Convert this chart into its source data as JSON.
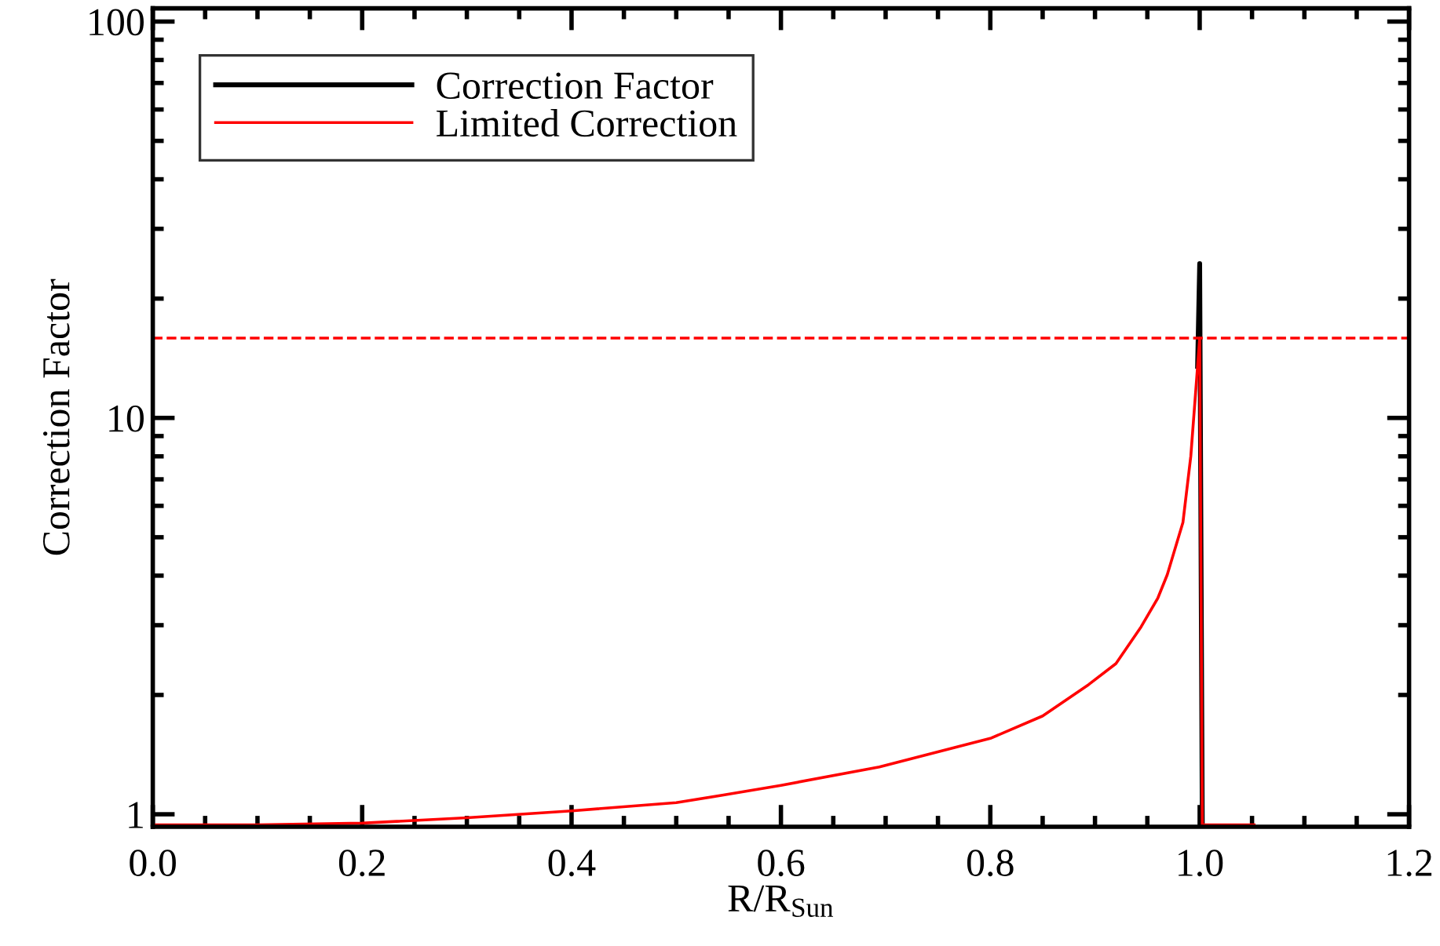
{
  "chart_data": {
    "type": "line",
    "xlabel": "R/R$_{Sun}$",
    "ylabel": "Correction Factor",
    "log": "y",
    "legend": "top left",
    "grid": false,
    "line_style": "solid",
    "marker": "none",
    "xlim": [
      0,
      1.2
    ],
    "ylim": [
      0.93,
      108
    ],
    "xticks": [
      {
        "value": 0,
        "label": "0.0"
      },
      {
        "value": 0.05,
        "label": null
      },
      {
        "value": 0.1,
        "label": null
      },
      {
        "value": 0.15,
        "label": null
      },
      {
        "value": 0.2,
        "label": "0.2"
      },
      {
        "value": 0.25,
        "label": null
      },
      {
        "value": 0.3,
        "label": null
      },
      {
        "value": 0.35,
        "label": null
      },
      {
        "value": 0.4,
        "label": "0.4"
      },
      {
        "value": 0.45,
        "label": null
      },
      {
        "value": 0.5,
        "label": null
      },
      {
        "value": 0.55,
        "label": null
      },
      {
        "value": 0.6,
        "label": "0.6"
      },
      {
        "value": 0.65,
        "label": null
      },
      {
        "value": 0.7,
        "label": null
      },
      {
        "value": 0.75,
        "label": null
      },
      {
        "value": 0.8,
        "label": "0.8"
      },
      {
        "value": 0.85,
        "label": null
      },
      {
        "value": 0.9,
        "label": null
      },
      {
        "value": 0.95,
        "label": null
      },
      {
        "value": 1.0,
        "label": "1.0"
      },
      {
        "value": 1.05,
        "label": null
      },
      {
        "value": 1.1,
        "label": null
      },
      {
        "value": 1.15,
        "label": null
      },
      {
        "value": 1.2,
        "label": "1.2"
      }
    ],
    "yticks": [
      1,
      {
        "value": 2,
        "label": null
      },
      {
        "value": 3,
        "label": null
      },
      {
        "value": 4,
        "label": null
      },
      {
        "value": 5,
        "label": null
      },
      {
        "value": 6,
        "label": null
      },
      {
        "value": 7,
        "label": null
      },
      {
        "value": 8,
        "label": null
      },
      {
        "value": 9,
        "label": null
      },
      10,
      {
        "value": 20,
        "label": null
      },
      {
        "value": 30,
        "label": null
      },
      {
        "value": 40,
        "label": null
      },
      {
        "value": 50,
        "label": null
      },
      {
        "value": 60,
        "label": null
      },
      {
        "value": 70,
        "label": null
      },
      {
        "value": 80,
        "label": null
      },
      {
        "value": 90,
        "label": null
      },
      100
    ],
    "series": [
      {
        "name": "Correction Factor",
        "color": "#000000",
        "x": [
          0.998,
          1.0,
          1.0025
        ],
        "values": [
          13.5,
          24.5,
          0.94
        ]
      },
      {
        "name": "Limited Correction",
        "color": "#ff0000",
        "x": [
          0,
          0.1,
          0.2,
          0.3,
          0.4,
          0.5,
          0.544,
          0.6,
          0.694,
          0.8,
          0.85,
          0.894,
          0.92,
          0.944,
          0.96,
          0.969,
          0.984,
          0.9915,
          0.998,
          1.0,
          1.0025,
          1.052
        ],
        "values": [
          0.94,
          0.94,
          0.95,
          0.98,
          1.02,
          1.07,
          1.117,
          1.183,
          1.316,
          1.554,
          1.77,
          2.125,
          2.4,
          2.97,
          3.51,
          4.02,
          5.45,
          8.0,
          13.5,
          15.9,
          0.94,
          0.94
        ]
      }
    ],
    "ref_lines": [
      {
        "axis": "y",
        "value": 15.9,
        "color": "#ff0000",
        "line_style": "dashed"
      }
    ]
  }
}
